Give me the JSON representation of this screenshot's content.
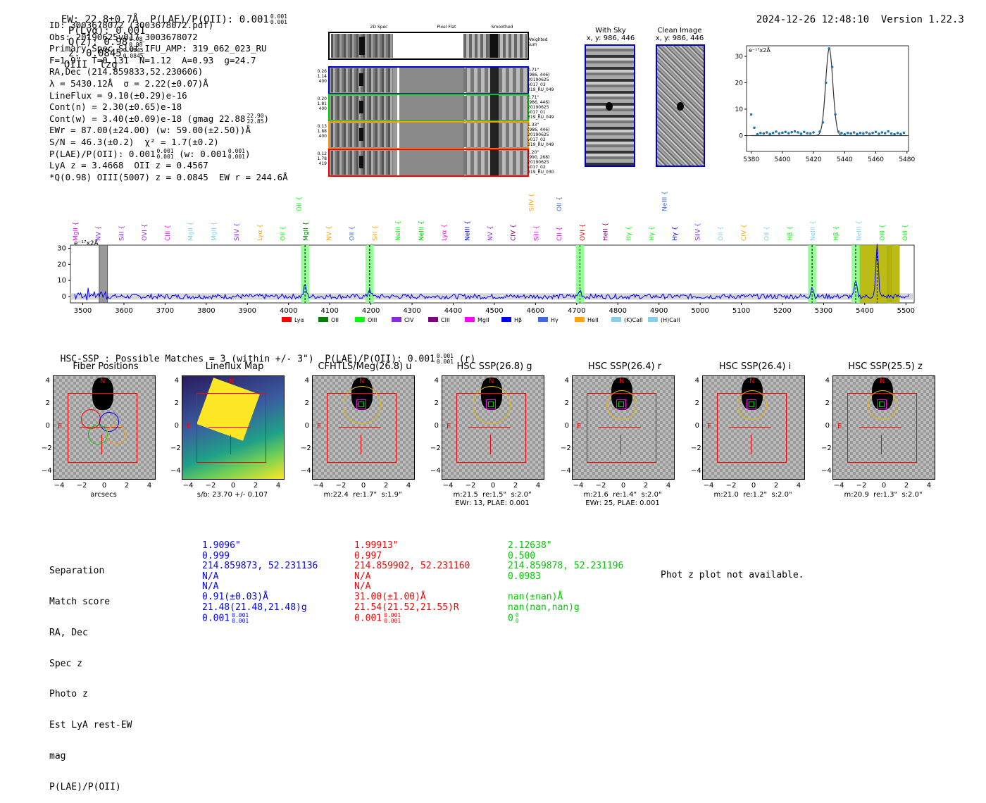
{
  "header": {
    "left": "EW: 22.8±0.7Å  P(LAE)/P(OII): 0.001",
    "left_sup": "0.001",
    "left_sub": "0.001",
    "plya": "P(Lyα): 0.001",
    "qz": "Q(z): 0.98",
    "qz_sup": "0.98",
    "qz_sub": "0.98",
    "z": "z: 0.0845",
    "z_sup": "0.0845",
    "z_sub": "0.0845",
    "tail": "OIII  lzg",
    "datetime": "2024-12-26 12:48:10",
    "version": "Version 1.22.3"
  },
  "info": {
    "l1": "ID: 3003678072 (3003678072.pdf)",
    "l2": "Obs: 20190625v017_3003678072",
    "l3": "Primary Spec_Slot_IFU_AMP: 319_062_023_RU",
    "l4": "F=1.9\"  T=0.131  N=1.12  A=0.93  g=24.7",
    "l5": "RA,Dec (214.859833,52.230606)",
    "l6": "λ = 5430.12Å  σ = 2.22(±0.07)Å",
    "l7": "LineFlux = 9.10(±0.29)e-16",
    "l8": "Cont(n) = 2.30(±0.65)e-18",
    "l9": "Cont(w) = 3.40(±0.09)e-18 (gmag 22.88",
    "l9_sup": "22.90",
    "l9_sub": "22.85",
    "l9_end": ")",
    "l10": "EWr = 87.00(±24.00) (w: 59.00(±2.50))Å",
    "l11": "S/N = 46.3(±0.2)  χ² = 1.7(±0.2)",
    "l12": "P(LAE)/P(OII): 0.001",
    "l12_sup": "0.001",
    "l12_sub": "0.001",
    "l12_mid": " (w: 0.001",
    "l12_sup2": "0.001",
    "l12_sub2": "0.001",
    "l12_end": ")",
    "l13": "LyA z = 3.4668  OII z = 0.4567",
    "l14": "*Q(0.98) OIII(5007) z = 0.0845  EW r = 244.6Å"
  },
  "cutouts": {
    "col_2d": "2D Spec",
    "col_flat": "Pixel Flat",
    "col_smooth": "Smoothed",
    "weighted_sum": "Weighted\nSum",
    "rows": [
      {
        "left": "0.26\n1.14\n400",
        "right": "0.71\"\n(986, 446)\n20190625\nv017_03\n319_RU_049",
        "color": "#0000cc"
      },
      {
        "left": "0.20\n1.81\n400",
        "right": "0.71\"\n(986, 446)\n20190625\nv017_01\n319_RU_049",
        "color": "#00cc00"
      },
      {
        "left": "0.13\n1.88\n400",
        "right": "1.33\"\n(986, 446)\n20190625\nv017_02\n319_RU_049",
        "color": "#ff9900"
      },
      {
        "left": "0.12\n1.78\n419",
        "right": "1.20\"\n(990, 268)\n20190625\nv017_02\n319_RU_030",
        "color": "#ff0000"
      }
    ],
    "with_sky": "With Sky",
    "with_sky_xy": "x, y: 986, 446",
    "clean": "Clean Image",
    "clean_xy": "x, y: 986, 446"
  },
  "zoom_plot": {
    "ylabel": "e⁻¹⁷x2Å",
    "xticks": [
      "5380",
      "5400",
      "5420",
      "5440",
      "5460",
      "5480"
    ],
    "yticks": [
      "0",
      "10",
      "20",
      "30"
    ]
  },
  "spectrum": {
    "ylabel": "e⁻¹⁷x2Å",
    "xticks": [
      "3500",
      "3600",
      "3700",
      "3800",
      "3900",
      "4000",
      "4100",
      "4200",
      "4300",
      "4400",
      "4500",
      "4600",
      "4700",
      "4800",
      "4900",
      "5000",
      "5100",
      "5200",
      "5300",
      "5400",
      "5500"
    ],
    "yticks": [
      "0",
      "10",
      "20",
      "30"
    ],
    "legend": [
      {
        "label": "Lyα",
        "color": "#ff0000"
      },
      {
        "label": "OII",
        "color": "#008000"
      },
      {
        "label": "OIII",
        "color": "#00ff00"
      },
      {
        "label": "CIV",
        "color": "#8a2be2"
      },
      {
        "label": "CIII",
        "color": "#800080"
      },
      {
        "label": "MgII",
        "color": "#ff00ff"
      },
      {
        "label": "Hβ",
        "color": "#0000ff"
      },
      {
        "label": "Hγ",
        "color": "#4169e1"
      },
      {
        "label": "HeII",
        "color": "#ffa500"
      },
      {
        "label": "(K)CaII",
        "color": "#87ceeb"
      },
      {
        "label": "(H)CaII",
        "color": "#87ceeb"
      }
    ],
    "line_labels": [
      {
        "t": "MgII",
        "c": "#ff00ff"
      },
      {
        "t": "NV",
        "c": "#8a2be2"
      },
      {
        "t": "SiII",
        "c": "#8a2be2"
      },
      {
        "t": "OVI",
        "c": "#8a2be2"
      },
      {
        "t": "CIII",
        "c": "#ff00ff"
      },
      {
        "t": "MgII",
        "c": "#87ceeb"
      },
      {
        "t": "MgII",
        "c": "#87ceeb"
      },
      {
        "t": "SiIV",
        "c": "#8a2be2"
      },
      {
        "t": "Lyα",
        "c": "#ffa500"
      },
      {
        "t": "OII",
        "c": "#00ff00"
      },
      {
        "t": "MgII",
        "c": "#008000"
      },
      {
        "t": "NV",
        "c": "#ffa500"
      },
      {
        "t": "OII",
        "c": "#4169e1"
      },
      {
        "t": "SiII",
        "c": "#ffa500"
      },
      {
        "t": "NeIII",
        "c": "#00ff00"
      },
      {
        "t": "NeIII",
        "c": "#00cc00"
      },
      {
        "t": "Lyα",
        "c": "#ff00ff"
      },
      {
        "t": "NeIII",
        "c": "#0000ff"
      },
      {
        "t": "NV",
        "c": "#8a2be2"
      },
      {
        "t": "CIV",
        "c": "#800080"
      },
      {
        "t": "SiII",
        "c": "#ff00ff"
      },
      {
        "t": "CII",
        "c": "#ff00ff"
      },
      {
        "t": "OVI",
        "c": "#ff0000"
      },
      {
        "t": "HeII",
        "c": "#800080"
      },
      {
        "t": "Hγ",
        "c": "#00ff00"
      },
      {
        "t": "Hγ",
        "c": "#00ff00"
      },
      {
        "t": "Hγ",
        "c": "#0000ff"
      },
      {
        "t": "SiIV",
        "c": "#8a2be2"
      },
      {
        "t": "OII",
        "c": "#87ceeb"
      },
      {
        "t": "CIV",
        "c": "#ffa500"
      },
      {
        "t": "OII",
        "c": "#87ceeb"
      },
      {
        "t": "Hβ",
        "c": "#00ff00"
      },
      {
        "t": "NeIII",
        "c": "#87ceeb"
      },
      {
        "t": "Hβ",
        "c": "#00ff00"
      },
      {
        "t": "NeIII",
        "c": "#87ceeb"
      },
      {
        "t": "OIII",
        "c": "#00ff00"
      },
      {
        "t": "OIII",
        "c": "#00ff00"
      }
    ],
    "top_labels": [
      {
        "t": "OII",
        "c": "#00ff00"
      },
      {
        "t": "SiIV",
        "c": "#ffa500"
      },
      {
        "t": "OII",
        "c": "#4169e1"
      },
      {
        "t": "NeIII",
        "c": "#4169e1"
      }
    ]
  },
  "hsc": {
    "summary": "HSC-SSP : Possible Matches = 3 (within +/- 3\")  P(LAE)/P(OII): 0.001",
    "summary_sup": "0.001",
    "summary_sub": "0.001",
    "summary_end": "(r)",
    "panels": [
      {
        "title": "Fiber Positions",
        "cap1": "arcsecs",
        "cap2": ""
      },
      {
        "title": "Lineflux Map",
        "cap1": "s/b: 23.70 +/- 0.107",
        "cap2": ""
      },
      {
        "title": "CFHTLS/Meg(26.8) u",
        "cap1": "m:22.4  re:1.7\"  s:1.9\"",
        "cap2": ""
      },
      {
        "title": "HSC SSP(26.8) g",
        "cap1": "m:21.5  re:1.5\"  s:2.0\"",
        "cap2": "EWr: 13, PLAE: 0.001"
      },
      {
        "title": "HSC SSP(26.4) r",
        "cap1": "m:21.6  re:1.4\"  s:2.0\"",
        "cap2": "EWr: 25, PLAE: 0.001"
      },
      {
        "title": "HSC SSP(26.4) i",
        "cap1": "m:21.0  re:1.2\"  s:2.0\"",
        "cap2": ""
      },
      {
        "title": "HSC SSP(25.5) z",
        "cap1": "m:20.9  re:1.3\"  s:2.0\"",
        "cap2": ""
      }
    ],
    "ticks": [
      "4",
      "2",
      "0",
      "−2",
      "−4"
    ],
    "xticks": [
      "−4",
      "−2",
      "0",
      "2",
      "4"
    ],
    "north": "N",
    "east": "E"
  },
  "matches": {
    "labels": [
      "Separation",
      "Match score",
      "RA, Dec",
      "Spec z",
      "Photo z",
      "Est LyA rest-EW",
      "mag",
      "P(LAE)/P(OII)"
    ],
    "cols": [
      {
        "color": "#0000ff",
        "vals": [
          "1.9096\"",
          "0.999",
          "214.859873, 52.231136",
          "N/A",
          "N/A",
          "0.91(±0.03)Å",
          "21.48(21.48,21.48)g",
          "0.001"
        ],
        "sup": "0.001",
        "sub": "0.001"
      },
      {
        "color": "#ff0000",
        "vals": [
          "1.99913\"",
          "0.997",
          "214.859902, 52.231160",
          "N/A",
          "N/A",
          "31.00(±1.00)Å",
          "21.54(21.52,21.55)R",
          "0.001"
        ],
        "sup": "0.001",
        "sub": "0.001"
      },
      {
        "color": "#00cc00",
        "vals": [
          "2.12638\"",
          "0.500",
          "214.859878, 52.231196",
          "0.0983",
          "",
          "nan(±nan)Å",
          "nan(nan,nan)g",
          "0"
        ],
        "sup": "0",
        "sub": "0"
      }
    ],
    "photz_msg": "Phot z plot not available."
  }
}
